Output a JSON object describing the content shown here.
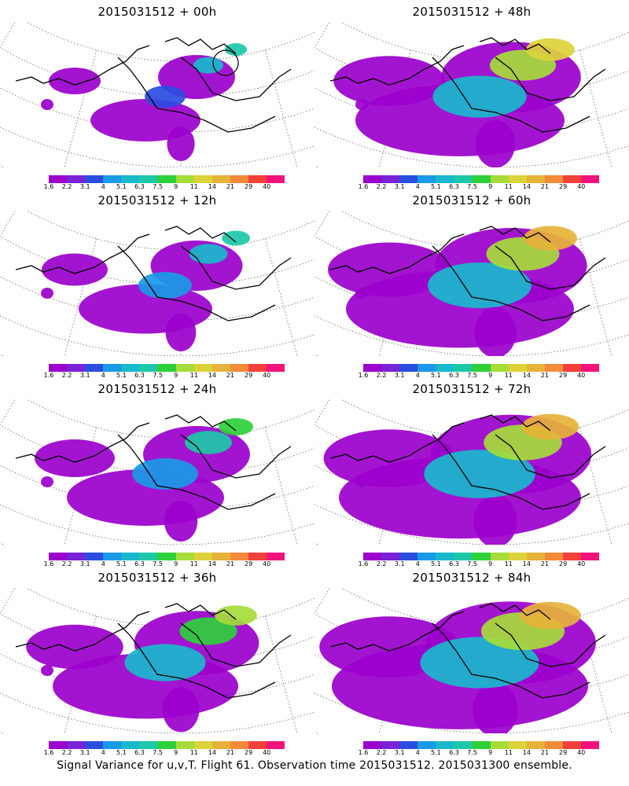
{
  "panels": [
    {
      "title": "2015031512 + 00h",
      "intensity": 0.2
    },
    {
      "title": "2015031512 + 48h",
      "intensity": 0.62
    },
    {
      "title": "2015031512 + 12h",
      "intensity": 0.3
    },
    {
      "title": "2015031512 + 60h",
      "intensity": 0.7
    },
    {
      "title": "2015031512 + 24h",
      "intensity": 0.4
    },
    {
      "title": "2015031512 + 72h",
      "intensity": 0.76
    },
    {
      "title": "2015031512 + 36h",
      "intensity": 0.52
    },
    {
      "title": "2015031512 + 84h",
      "intensity": 0.82
    }
  ],
  "colorbar": {
    "ticks": [
      "1.6",
      "2.2",
      "3.1",
      "4",
      "5.1",
      "6.3",
      "7.5",
      "9",
      "11",
      "14",
      "21",
      "29",
      "40"
    ],
    "colors": [
      "#9b00cc",
      "#7a22d6",
      "#2a4de0",
      "#1a9ae6",
      "#19b8cc",
      "#1cc8a8",
      "#2ed03a",
      "#a6dc3a",
      "#dcd23a",
      "#e6b23a",
      "#f28a3a",
      "#f2403a",
      "#f2147a"
    ]
  },
  "caption": "Signal Variance for u,v,T. Flight 61. Observation time 2015031512. 2015031300 ensemble."
}
